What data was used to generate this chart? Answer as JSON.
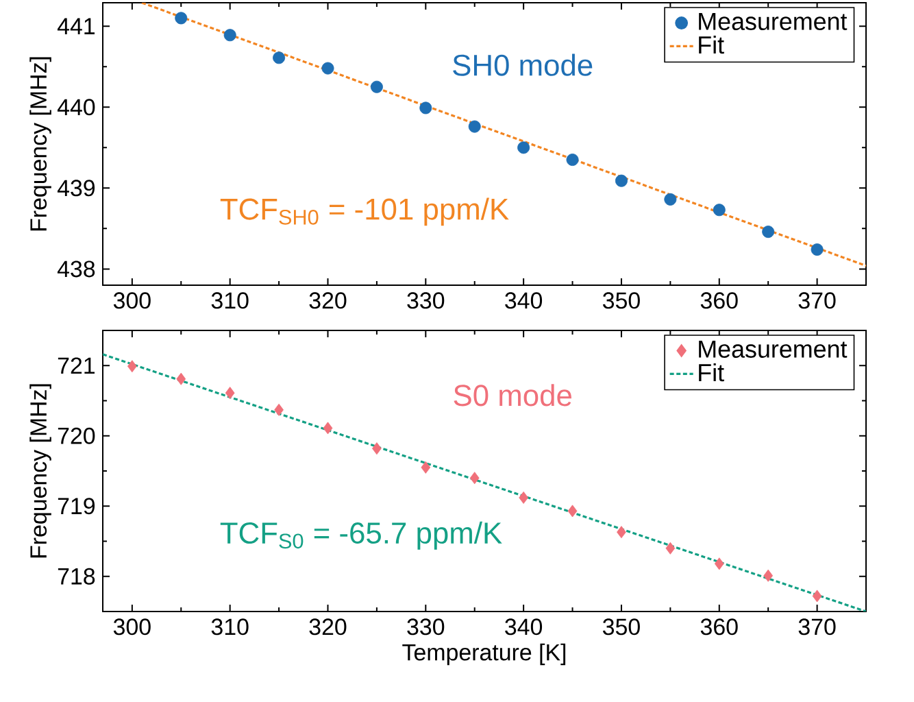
{
  "chart_data": [
    {
      "type": "scatter",
      "ylabel": "Frequency [MHz]",
      "xlim": [
        297,
        375
      ],
      "ylim": [
        437.8,
        441.29
      ],
      "xticks": [
        300,
        310,
        320,
        330,
        340,
        350,
        360,
        370
      ],
      "yticks": [
        438,
        439,
        440,
        441
      ],
      "legend": "top right",
      "grid": false,
      "annotations": [
        "SH0 mode",
        "TCF$_{SH0}$ = -101 ppm/K"
      ],
      "series": [
        {
          "name": "Measurement",
          "marker": "circle",
          "color": "#1f6fb4",
          "x": [
            305,
            310,
            315,
            320,
            325,
            330,
            335,
            340,
            345,
            350,
            355,
            360,
            365,
            370
          ],
          "values": [
            441.1,
            440.89,
            440.61,
            440.48,
            440.25,
            439.99,
            439.76,
            439.5,
            439.35,
            439.09,
            438.86,
            438.73,
            438.46,
            438.24
          ]
        },
        {
          "name": "Fit",
          "type": "line",
          "line_style": "dashed",
          "color": "#f28522",
          "x": [
            301,
            375
          ],
          "values": [
            441.29,
            438.04
          ]
        }
      ]
    },
    {
      "type": "scatter",
      "xlabel": "Temperature [K]",
      "ylabel": "Frequency [MHz]",
      "xlim": [
        297,
        375
      ],
      "ylim": [
        717.5,
        721.5
      ],
      "xticks": [
        300,
        310,
        320,
        330,
        340,
        350,
        360,
        370
      ],
      "yticks": [
        718,
        719,
        720,
        721
      ],
      "legend": "top right",
      "grid": false,
      "annotations": [
        "S0 mode",
        "TCF$_{S0}$ = -65.7 ppm/K"
      ],
      "series": [
        {
          "name": "Measurement",
          "marker": "diamond",
          "color": "#f0707a",
          "x": [
            300,
            305,
            310,
            315,
            320,
            325,
            330,
            335,
            340,
            345,
            350,
            355,
            360,
            365,
            370
          ],
          "values": [
            720.99,
            720.81,
            720.61,
            720.37,
            720.11,
            719.82,
            719.55,
            719.4,
            719.12,
            718.93,
            718.63,
            718.4,
            718.18,
            718.01,
            717.72
          ]
        },
        {
          "name": "Fit",
          "type": "line",
          "line_style": "dashed",
          "color": "#14a085",
          "x": [
            297,
            375
          ],
          "values": [
            721.16,
            717.5
          ]
        }
      ]
    }
  ]
}
